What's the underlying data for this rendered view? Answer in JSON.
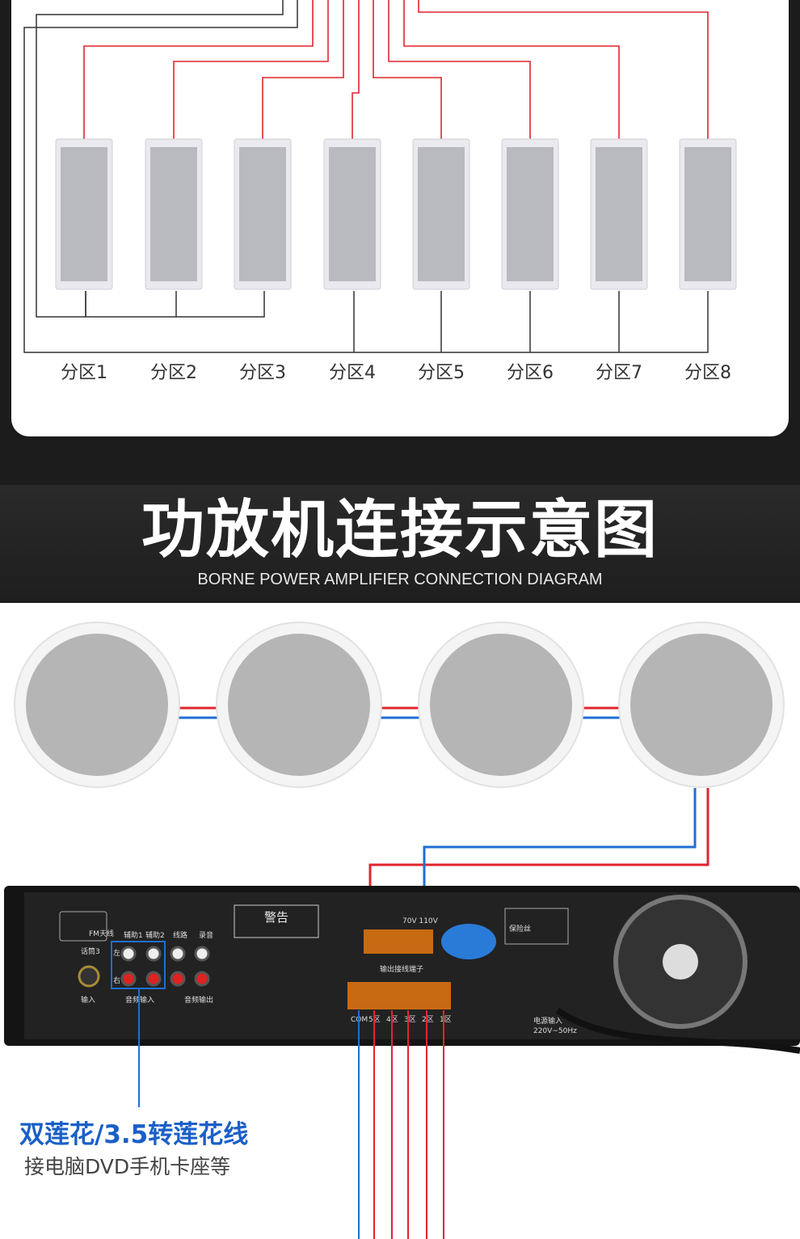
{
  "zones": [
    "分区1",
    "分区2",
    "分区3",
    "分区4",
    "分区5",
    "分区6",
    "分区7",
    "分区8"
  ],
  "title": "功放机连接示意图",
  "subtitle": "BORNE POWER AMPLIFIER CONNECTION DIAGRAM",
  "caption": {
    "line1": "双莲花/3.5转莲花线",
    "line2": "接电脑DVD手机卡座等"
  },
  "amplifier_panel": {
    "fm": "FM天线",
    "mic": "话筒3",
    "aux1": "辅助1",
    "aux2": "辅助2",
    "line": "线路",
    "rec": "录音",
    "left": "左",
    "right": "右",
    "input": "输入",
    "audio_in": "音频输入",
    "audio_out": "音频输出",
    "warning": "警告",
    "fuse": "保险丝",
    "power": "电源输入",
    "power_spec": "220V~50Hz",
    "terminals": [
      "COM",
      "5区",
      "4区",
      "3区",
      "2区",
      "1区"
    ],
    "output_terminals": "输出接线端子",
    "voltage": "70V  110V"
  },
  "colors": {
    "wire_red": "#e0252f",
    "wire_blue": "#1f6fd1",
    "background_dark": "#1c1c1c"
  }
}
